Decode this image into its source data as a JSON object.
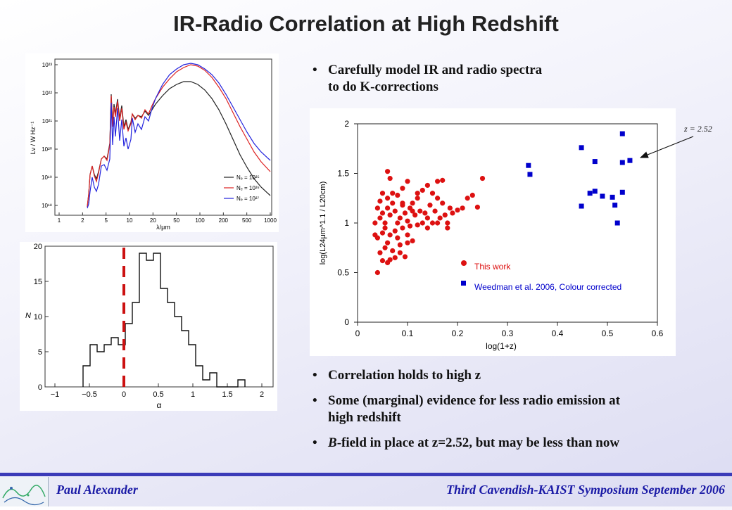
{
  "slide": {
    "title": "IR-Radio Correlation at High Redshift",
    "bullets_top": [
      "Carefully model IR and  radio spectra",
      "to do K-corrections"
    ],
    "bullets_bottom": [
      {
        "text": "Correlation holds to high z"
      },
      {
        "line1": "Some (marginal) evidence for less radio emission at",
        "line2": "high redshift"
      },
      {
        "emph": "B",
        "text": "-field in place at z=2.52, but may be less than now"
      }
    ],
    "footer_left": "Paul Alexander",
    "footer_right": "Third Cavendish-KAIST Symposium September 2006"
  },
  "spectrum_plot": {
    "ylabel": "Lν / W Hz⁻¹",
    "xlabel": "λ/μm",
    "xticks": [
      "1",
      "2",
      "5",
      "10",
      "20",
      "50",
      "100",
      "200",
      "500",
      "1000"
    ],
    "yticks": [
      "10¹⁸",
      "10¹⁹",
      "10²⁰",
      "10²¹",
      "10²²",
      "10²³"
    ],
    "legend": [
      "Nₑ = 10²⁵",
      "Nₑ = 10²⁶",
      "Nₑ = 10²⁷"
    ],
    "colors": [
      "#222222",
      "#dd2222",
      "#2222dd"
    ]
  },
  "histogram_plot": {
    "xlabel": "α",
    "ylabel": "N",
    "xticks": [
      "−1",
      "−0.5",
      "0",
      "0.5",
      "1",
      "1.5",
      "2"
    ],
    "yticks": [
      "0",
      "5",
      "10",
      "15",
      "20"
    ]
  },
  "chart_data": {
    "type": "scatter",
    "xlabel": "log(1+z)",
    "ylabel": "log(L24μm^1.1 / L20cm)",
    "xlim": [
      0,
      0.6
    ],
    "ylim": [
      0,
      2
    ],
    "xticks": [
      "0",
      "0.1",
      "0.2",
      "0.3",
      "0.4",
      "0.5",
      "0.6"
    ],
    "yticks": [
      "0",
      "0.5",
      "1",
      "1.5",
      "2"
    ],
    "annotation": "z = 2.52",
    "legend_position": "bottom-right",
    "series": [
      {
        "name": "This work",
        "marker": "circle",
        "color": "#dd1111",
        "points": [
          [
            0.04,
            0.5
          ],
          [
            0.045,
            0.7
          ],
          [
            0.05,
            0.62
          ],
          [
            0.055,
            0.75
          ],
          [
            0.06,
            0.6
          ],
          [
            0.065,
            0.63
          ],
          [
            0.04,
            0.85
          ],
          [
            0.05,
            0.9
          ],
          [
            0.055,
            0.95
          ],
          [
            0.06,
            0.8
          ],
          [
            0.065,
            0.88
          ],
          [
            0.07,
            0.72
          ],
          [
            0.075,
            0.92
          ],
          [
            0.08,
            0.85
          ],
          [
            0.085,
            0.78
          ],
          [
            0.09,
            0.95
          ],
          [
            0.095,
            0.66
          ],
          [
            0.1,
            0.88
          ],
          [
            0.105,
            0.97
          ],
          [
            0.11,
            0.82
          ],
          [
            0.045,
            1.05
          ],
          [
            0.05,
            1.1
          ],
          [
            0.055,
            1.0
          ],
          [
            0.06,
            1.15
          ],
          [
            0.065,
            1.08
          ],
          [
            0.07,
            1.2
          ],
          [
            0.075,
            1.12
          ],
          [
            0.08,
            1.0
          ],
          [
            0.085,
            1.05
          ],
          [
            0.09,
            1.18
          ],
          [
            0.095,
            1.1
          ],
          [
            0.1,
            1.02
          ],
          [
            0.105,
            1.15
          ],
          [
            0.11,
            1.2
          ],
          [
            0.115,
            1.08
          ],
          [
            0.12,
            1.25
          ],
          [
            0.125,
            1.12
          ],
          [
            0.13,
            1.0
          ],
          [
            0.135,
            1.1
          ],
          [
            0.14,
            1.05
          ],
          [
            0.145,
            1.18
          ],
          [
            0.15,
            1.0
          ],
          [
            0.155,
            1.12
          ],
          [
            0.16,
            1.25
          ],
          [
            0.165,
            1.05
          ],
          [
            0.17,
            1.2
          ],
          [
            0.175,
            1.08
          ],
          [
            0.18,
            1.0
          ],
          [
            0.185,
            1.15
          ],
          [
            0.19,
            1.1
          ],
          [
            0.2,
            1.13
          ],
          [
            0.21,
            1.15
          ],
          [
            0.22,
            1.25
          ],
          [
            0.23,
            1.28
          ],
          [
            0.24,
            1.16
          ],
          [
            0.25,
            1.45
          ],
          [
            0.06,
            1.52
          ],
          [
            0.065,
            1.45
          ],
          [
            0.1,
            1.42
          ],
          [
            0.14,
            1.38
          ],
          [
            0.16,
            1.42
          ],
          [
            0.17,
            1.43
          ],
          [
            0.09,
            1.35
          ],
          [
            0.08,
            1.28
          ],
          [
            0.07,
            1.3
          ],
          [
            0.12,
            1.3
          ],
          [
            0.13,
            1.33
          ],
          [
            0.15,
            1.3
          ],
          [
            0.05,
            1.3
          ],
          [
            0.045,
            1.22
          ],
          [
            0.06,
            1.25
          ],
          [
            0.04,
            1.15
          ],
          [
            0.035,
            1.0
          ],
          [
            0.035,
            0.88
          ],
          [
            0.09,
            1.2
          ],
          [
            0.11,
            1.12
          ],
          [
            0.12,
            0.98
          ],
          [
            0.14,
            0.95
          ],
          [
            0.16,
            1.0
          ],
          [
            0.18,
            0.95
          ],
          [
            0.1,
            0.8
          ],
          [
            0.085,
            0.7
          ],
          [
            0.075,
            0.65
          ]
        ]
      },
      {
        "name": "Weedman et al. 2006, Colour corrected",
        "marker": "square",
        "color": "#0000cc",
        "points": [
          [
            0.342,
            1.58
          ],
          [
            0.345,
            1.49
          ],
          [
            0.448,
            1.76
          ],
          [
            0.448,
            1.17
          ],
          [
            0.465,
            1.3
          ],
          [
            0.475,
            1.62
          ],
          [
            0.475,
            1.32
          ],
          [
            0.49,
            1.27
          ],
          [
            0.51,
            1.26
          ],
          [
            0.515,
            1.18
          ],
          [
            0.52,
            1.0
          ],
          [
            0.53,
            1.9
          ],
          [
            0.53,
            1.61
          ],
          [
            0.53,
            1.31
          ],
          [
            0.545,
            1.63
          ]
        ]
      }
    ]
  }
}
